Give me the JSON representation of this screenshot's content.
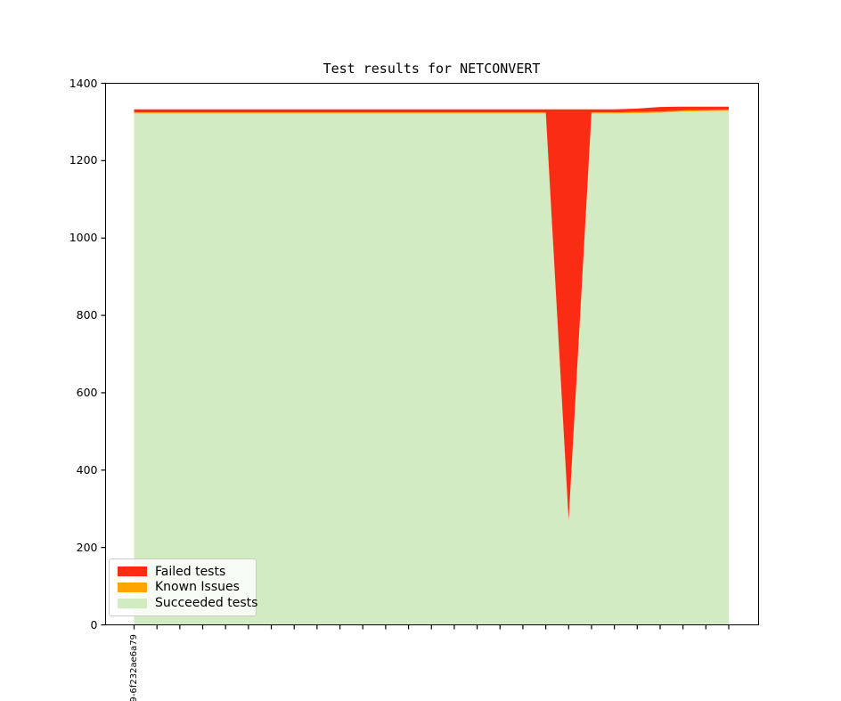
{
  "figure": {
    "title": "Test results for NETCONVERT",
    "background": "#ffffff"
  },
  "legend": {
    "position": "lower left",
    "items": [
      {
        "label": "Failed tests",
        "color": "#fa2d14"
      },
      {
        "label": "Known Issues",
        "color": "#ffa500"
      },
      {
        "label": "Succeeded tests",
        "color": "#d3ebc3"
      }
    ]
  },
  "chart_data": {
    "type": "area",
    "stacked": true,
    "title": "Test results for NETCONVERT",
    "xlabel": "",
    "ylabel": "",
    "ylim": [
      0,
      1400
    ],
    "yticks": [
      0,
      200,
      400,
      600,
      800,
      1000,
      1200,
      1400
    ],
    "grid": false,
    "legend_position": "lower left",
    "x_labels": [
      "9-6f232ae6a79",
      "",
      "",
      "",
      "",
      "",
      "",
      "",
      "",
      "",
      "",
      "",
      "",
      "",
      "",
      "",
      "",
      "",
      "",
      "",
      "",
      "",
      "",
      "",
      "",
      "",
      ""
    ],
    "stack_order_bottom_to_top": [
      "Succeeded tests",
      "Known Issues",
      "Failed tests"
    ],
    "series": [
      {
        "name": "Failed tests",
        "color": "#fa2d14",
        "values": [
          6,
          6,
          6,
          6,
          6,
          6,
          6,
          6,
          6,
          6,
          6,
          6,
          6,
          6,
          6,
          6,
          6,
          6,
          6,
          1060,
          6,
          6,
          7,
          10,
          8,
          7,
          6
        ]
      },
      {
        "name": "Known Issues",
        "color": "#ffa500",
        "values": [
          3,
          3,
          3,
          3,
          3,
          3,
          3,
          3,
          3,
          3,
          3,
          3,
          3,
          3,
          3,
          3,
          3,
          3,
          3,
          3,
          3,
          3,
          3,
          3,
          3,
          3,
          3
        ]
      },
      {
        "name": "Succeeded tests",
        "color": "#d3ebc3",
        "values": [
          1322,
          1322,
          1322,
          1322,
          1322,
          1322,
          1322,
          1322,
          1322,
          1322,
          1322,
          1322,
          1322,
          1322,
          1322,
          1322,
          1322,
          1322,
          1322,
          268,
          1322,
          1322,
          1323,
          1324,
          1327,
          1328,
          1329
        ]
      }
    ]
  }
}
